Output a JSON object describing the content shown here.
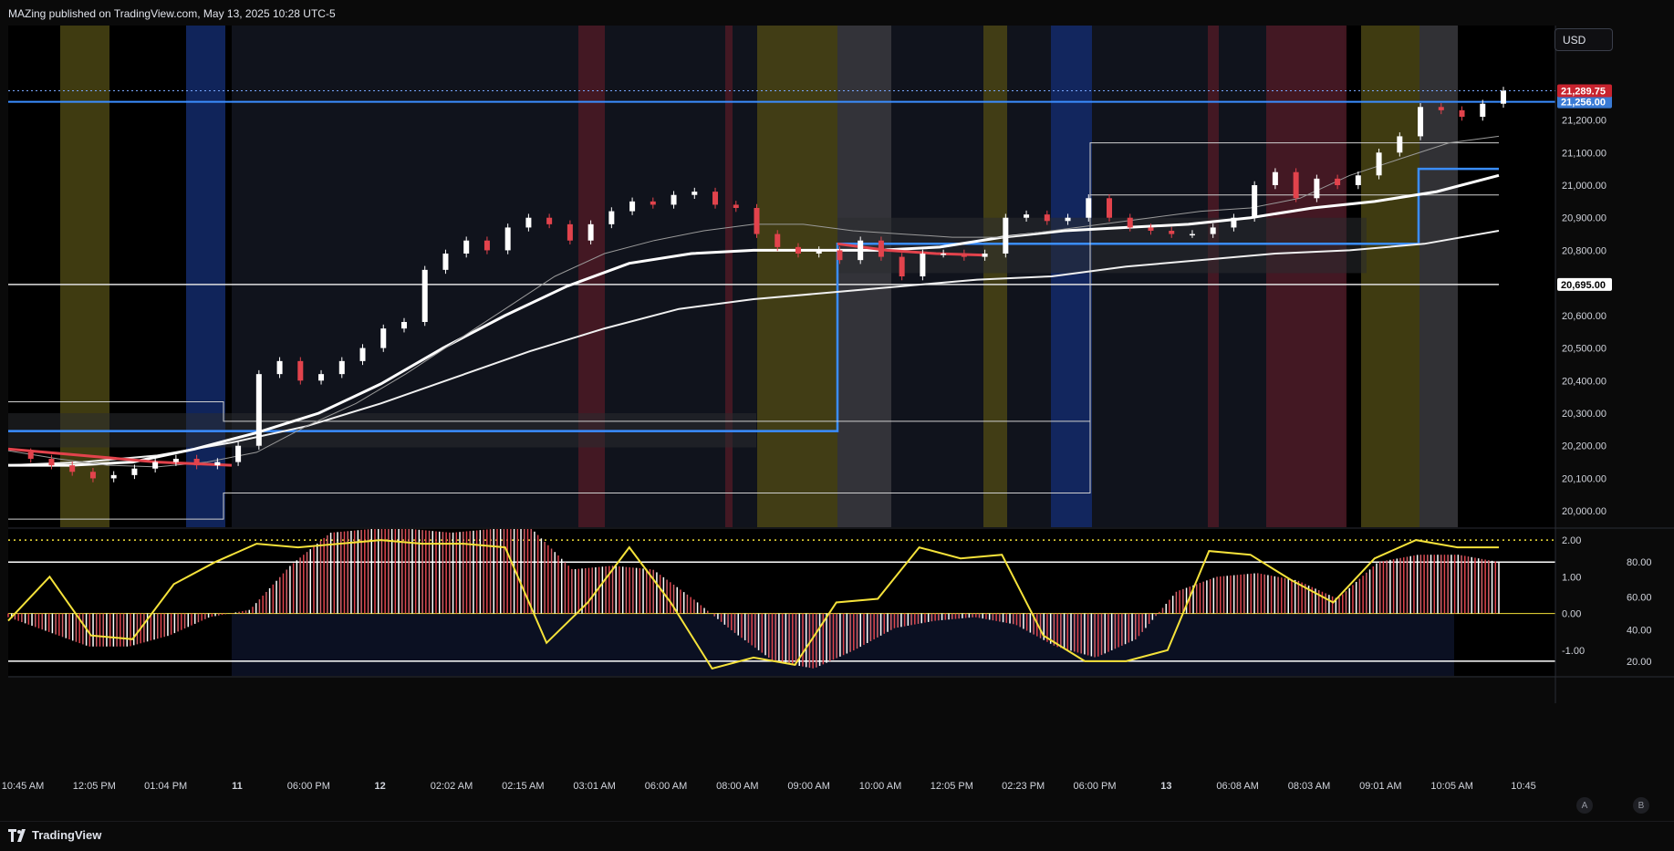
{
  "header": {
    "publish_note": "MAZing published on TradingView.com, May 13, 2025 10:28 UTC-5"
  },
  "price_axis": {
    "currency": "USD",
    "ticks": [
      "20,000.00",
      "20,100.00",
      "20,200.00",
      "20,300.00",
      "20,400.00",
      "20,500.00",
      "20,600.00",
      "20,700.00",
      "20,800.00",
      "20,900.00",
      "21,000.00",
      "21,100.00",
      "21,200.00"
    ],
    "last_price_label": "21,289.75",
    "level_blue_label": "21,256.00",
    "level_white_label": "20,695.00"
  },
  "oscillator_axis": {
    "left_ticks": [
      "2.00",
      "1.00",
      "0.00",
      "-1.00"
    ],
    "right_ticks": [
      "80.00",
      "60.00",
      "40.00",
      "20.00"
    ]
  },
  "time_axis": {
    "labels": [
      "10:45 AM",
      "12:05 PM",
      "01:04 PM",
      "11",
      "06:00 PM",
      "12",
      "02:02 AM",
      "02:15 AM",
      "03:01 AM",
      "06:00 AM",
      "08:00 AM",
      "09:00 AM",
      "10:00 AM",
      "12:05 PM",
      "02:23 PM",
      "06:00 PM",
      "13",
      "06:08 AM",
      "08:03 AM",
      "09:01 AM",
      "10:05 AM",
      "10:45"
    ]
  },
  "footer": {
    "brand": "TradingView",
    "axis_btn_auto": "A",
    "axis_btn_b": "B"
  },
  "colors": {
    "background": "#000000",
    "candle_up": "#ffffff",
    "candle_down": "#e2434c",
    "level_blue": "#2962ff",
    "level_blue_light": "#3a8dff",
    "last_price_tag": "#c8232e",
    "oscillator_line": "#f5e23a",
    "session_yellow": "#4a4514",
    "session_blue": "#132a6a",
    "session_red": "#4c1a24",
    "session_gray": "#3a3a3e"
  },
  "chart_data": [
    {
      "type": "line",
      "title": "",
      "ylim": [
        19950,
        21490
      ],
      "x_labels": [
        "10:45 AM",
        "12:05 PM",
        "01:04 PM",
        "11",
        "06:00 PM",
        "12",
        "02:02 AM",
        "02:15 AM",
        "03:01 AM",
        "06:00 AM",
        "08:00 AM",
        "09:00 AM",
        "10:00 AM",
        "12:05 PM",
        "02:23 PM",
        "06:00 PM",
        "13",
        "06:08 AM",
        "08:03 AM",
        "09:01 AM",
        "10:05 AM",
        "10:45"
      ],
      "series": [
        {
          "values": [
            20180,
            20160,
            20140,
            20120,
            20100,
            20110,
            20130,
            20150,
            20160,
            20140,
            20150,
            20200,
            20420,
            20460,
            20400,
            20420,
            20460,
            20500,
            20560,
            20580,
            20740,
            20790,
            20830,
            20800,
            20870,
            20900,
            20880,
            20830,
            20880,
            20920,
            20950,
            20940,
            20970,
            20980,
            20940,
            20930,
            20850,
            20810,
            20790,
            20800,
            20770,
            20830,
            20780,
            20720,
            20790,
            20790,
            20780,
            20790,
            20900,
            20910,
            20890,
            20900,
            20960,
            20900,
            20870,
            20860,
            20850,
            20850,
            20870,
            20900,
            21000,
            21040,
            20960,
            21020,
            21000,
            21030,
            21100,
            21150,
            21240,
            21230,
            21210,
            21250,
            21290
          ]
        },
        {
          "values": [
            20185,
            20160,
            20140,
            20135,
            20150,
            20180,
            20260,
            20330,
            20420,
            20520,
            20620,
            20720,
            20790,
            20830,
            20860,
            20880,
            20880,
            20860,
            20850,
            20840,
            20840,
            20860,
            20880,
            20900,
            20920,
            20930,
            20960,
            21030,
            21080,
            21130,
            21150
          ]
        },
        {
          "values": [
            20140,
            20140,
            20150,
            20190,
            20240,
            20300,
            20390,
            20500,
            20600,
            20690,
            20760,
            20790,
            20800,
            20800,
            20800,
            20810,
            20840,
            20860,
            20870,
            20880,
            20900,
            20930,
            20950,
            20980,
            21030
          ]
        },
        {
          "values": [
            20140,
            20150,
            20170,
            20210,
            20260,
            20330,
            20410,
            20490,
            20560,
            20620,
            20650,
            20670,
            20690,
            20710,
            20720,
            20750,
            20770,
            20790,
            20800,
            20820,
            20860
          ]
        }
      ],
      "levels": [
        {
          "name": "",
          "value": 21256
        },
        {
          "name": "",
          "value": 20695
        }
      ]
    },
    {
      "type": "bar",
      "title": "",
      "ylim": [
        -1.7,
        2.3
      ],
      "series": [
        {
          "values": [
            -0.1,
            -0.5,
            -0.9,
            -0.9,
            -0.6,
            -0.1,
            0.1,
            1.3,
            2.2,
            2.3,
            2.3,
            2.2,
            2.3,
            2.3,
            1.2,
            1.3,
            1.2,
            0.4,
            -0.5,
            -1.3,
            -1.5,
            -1.0,
            -0.4,
            -0.2,
            -0.1,
            -0.3,
            -0.9,
            -1.2,
            -0.7,
            0.6,
            1.0,
            1.1,
            0.9,
            0.4,
            1.4,
            1.6,
            1.6,
            1.4
          ]
        },
        {
          "values": [
            -0.2,
            1.0,
            -0.6,
            -0.7,
            0.8,
            1.4,
            1.9,
            1.8,
            1.9,
            2.0,
            1.9,
            1.9,
            1.8,
            -0.8,
            0.3,
            1.8,
            0.3,
            -1.5,
            -1.2,
            -1.4,
            0.3,
            0.4,
            1.8,
            1.5,
            1.6,
            -0.6,
            -1.3,
            -1.3,
            -1.0,
            1.7,
            1.6,
            0.9,
            0.3,
            1.5,
            2.0,
            1.8,
            1.8
          ]
        }
      ]
    }
  ]
}
